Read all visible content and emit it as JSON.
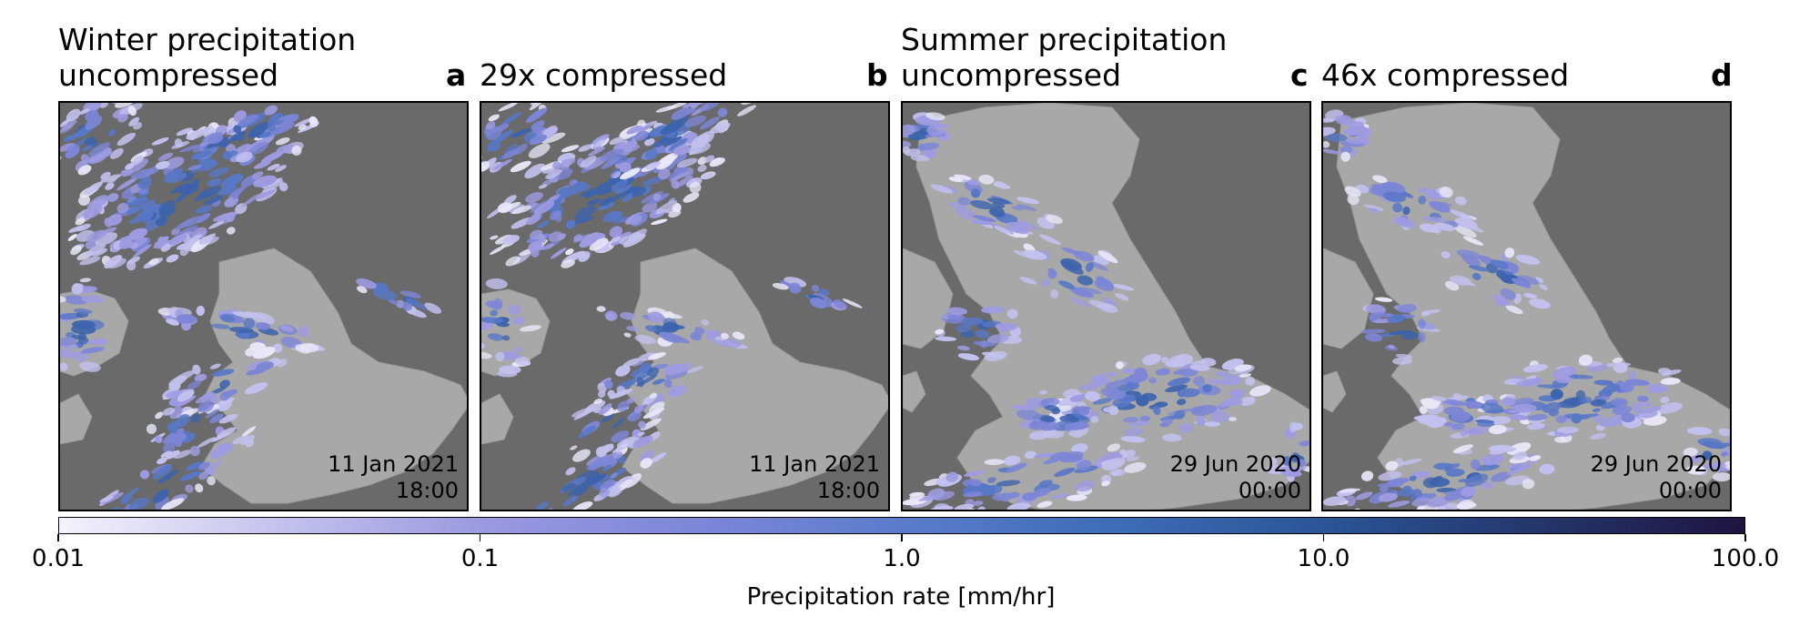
{
  "figure": {
    "group_titles": {
      "winter": "Winter precipitation",
      "summer": "Summer precipitation"
    },
    "panels": [
      {
        "subtitle": "uncompressed",
        "tag": "a",
        "date": "11 Jan 2021",
        "time": "18:00",
        "season": "winter"
      },
      {
        "subtitle": "29x compressed",
        "tag": "b",
        "date": "11 Jan 2021",
        "time": "18:00",
        "season": "winter"
      },
      {
        "subtitle": "uncompressed",
        "tag": "c",
        "date": "29 Jun 2020",
        "time": "00:00",
        "season": "summer"
      },
      {
        "subtitle": "46x compressed",
        "tag": "d",
        "date": "29 Jun 2020",
        "time": "00:00",
        "season": "summer"
      }
    ],
    "colorbar": {
      "label": "Precipitation rate [mm/hr]",
      "scale": "log",
      "range": [
        0.01,
        100.0
      ],
      "ticks": [
        "0.01",
        "0.1",
        "1.0",
        "10.0",
        "100.0"
      ],
      "colors": {
        "low": "#f4f2fb",
        "mid": "#5b7ccb",
        "high": "#1f1440"
      }
    },
    "map_colors": {
      "sea": "#6a6a6a",
      "land": "#a8a8a8"
    }
  }
}
